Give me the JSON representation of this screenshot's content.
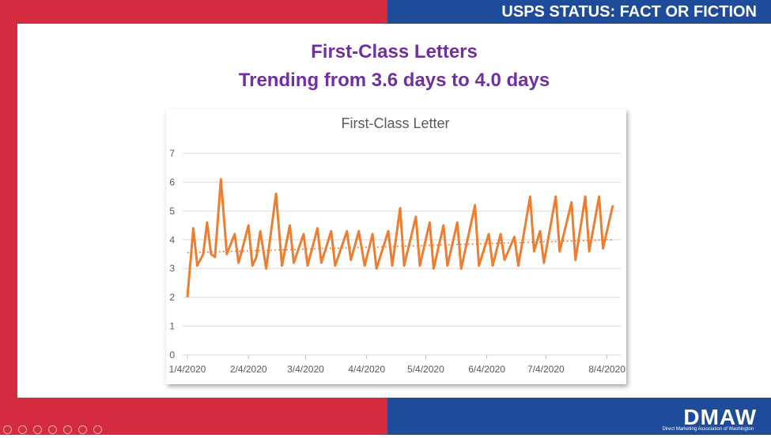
{
  "header": {
    "title": "USPS STATUS: FACT OR FICTION"
  },
  "slide": {
    "title": "First-Class Letters",
    "subtitle": "Trending from 3.6 days to 4.0 days"
  },
  "chart_data": {
    "type": "line",
    "title": "First-Class Letter",
    "x": [
      "2020-01-04",
      "2020-01-07",
      "2020-01-09",
      "2020-01-12",
      "2020-01-14",
      "2020-01-16",
      "2020-01-18",
      "2020-01-21",
      "2020-01-24",
      "2020-01-28",
      "2020-01-30",
      "2020-02-04",
      "2020-02-06",
      "2020-02-08",
      "2020-02-10",
      "2020-02-13",
      "2020-02-18",
      "2020-02-21",
      "2020-02-25",
      "2020-02-27",
      "2020-03-03",
      "2020-03-05",
      "2020-03-10",
      "2020-03-12",
      "2020-03-17",
      "2020-03-19",
      "2020-03-25",
      "2020-03-27",
      "2020-03-31",
      "2020-04-03",
      "2020-04-07",
      "2020-04-09",
      "2020-04-15",
      "2020-04-17",
      "2020-04-21",
      "2020-04-23",
      "2020-04-29",
      "2020-05-01",
      "2020-05-06",
      "2020-05-08",
      "2020-05-13",
      "2020-05-15",
      "2020-05-20",
      "2020-05-22",
      "2020-05-29",
      "2020-05-31",
      "2020-06-05",
      "2020-06-07",
      "2020-06-11",
      "2020-06-13",
      "2020-06-18",
      "2020-06-20",
      "2020-06-26",
      "2020-06-28",
      "2020-07-01",
      "2020-07-03",
      "2020-07-09",
      "2020-07-11",
      "2020-07-17",
      "2020-07-19",
      "2020-07-24",
      "2020-07-26",
      "2020-07-31",
      "2020-08-02",
      "2020-08-07"
    ],
    "series": [
      {
        "color": "#ED7D31",
        "values": [
          2.0,
          4.4,
          3.1,
          3.5,
          4.6,
          3.5,
          3.4,
          6.1,
          3.5,
          4.2,
          3.2,
          4.5,
          3.1,
          3.4,
          4.3,
          3.0,
          5.6,
          3.1,
          4.5,
          3.2,
          4.2,
          3.1,
          4.4,
          3.2,
          4.3,
          3.1,
          4.3,
          3.3,
          4.3,
          3.1,
          4.2,
          3.0,
          4.3,
          3.1,
          5.1,
          3.1,
          4.8,
          3.1,
          4.6,
          3.0,
          4.5,
          3.1,
          4.6,
          3.0,
          5.2,
          3.1,
          4.2,
          3.1,
          4.2,
          3.3,
          4.1,
          3.1,
          5.5,
          3.6,
          4.3,
          3.2,
          5.5,
          3.6,
          5.3,
          3.3,
          5.5,
          3.6,
          5.5,
          3.7,
          5.2
        ]
      }
    ],
    "trendline": {
      "color": "#ED7D31",
      "x": [
        "2020-01-04",
        "2020-08-07"
      ],
      "values": [
        3.55,
        4.0
      ]
    },
    "xlim": [
      "2020-01-04",
      "2020-08-11"
    ],
    "xticks": [
      {
        "value": "2020-01-04",
        "label": "1/4/2020"
      },
      {
        "value": "2020-02-04",
        "label": "2/4/2020"
      },
      {
        "value": "2020-03-04",
        "label": "3/4/2020"
      },
      {
        "value": "2020-04-04",
        "label": "4/4/2020"
      },
      {
        "value": "2020-05-04",
        "label": "5/4/2020"
      },
      {
        "value": "2020-06-04",
        "label": "6/4/2020"
      },
      {
        "value": "2020-07-04",
        "label": "7/4/2020"
      },
      {
        "value": "2020-08-04",
        "label": "8/4/2020"
      }
    ],
    "ylim": [
      0,
      7
    ],
    "yticks": [
      0,
      1,
      2,
      3,
      4,
      5,
      6,
      7
    ],
    "grid": true
  },
  "footer": {
    "logo": "DMAW",
    "tagline": "Direct Marketing Association of Washington"
  }
}
